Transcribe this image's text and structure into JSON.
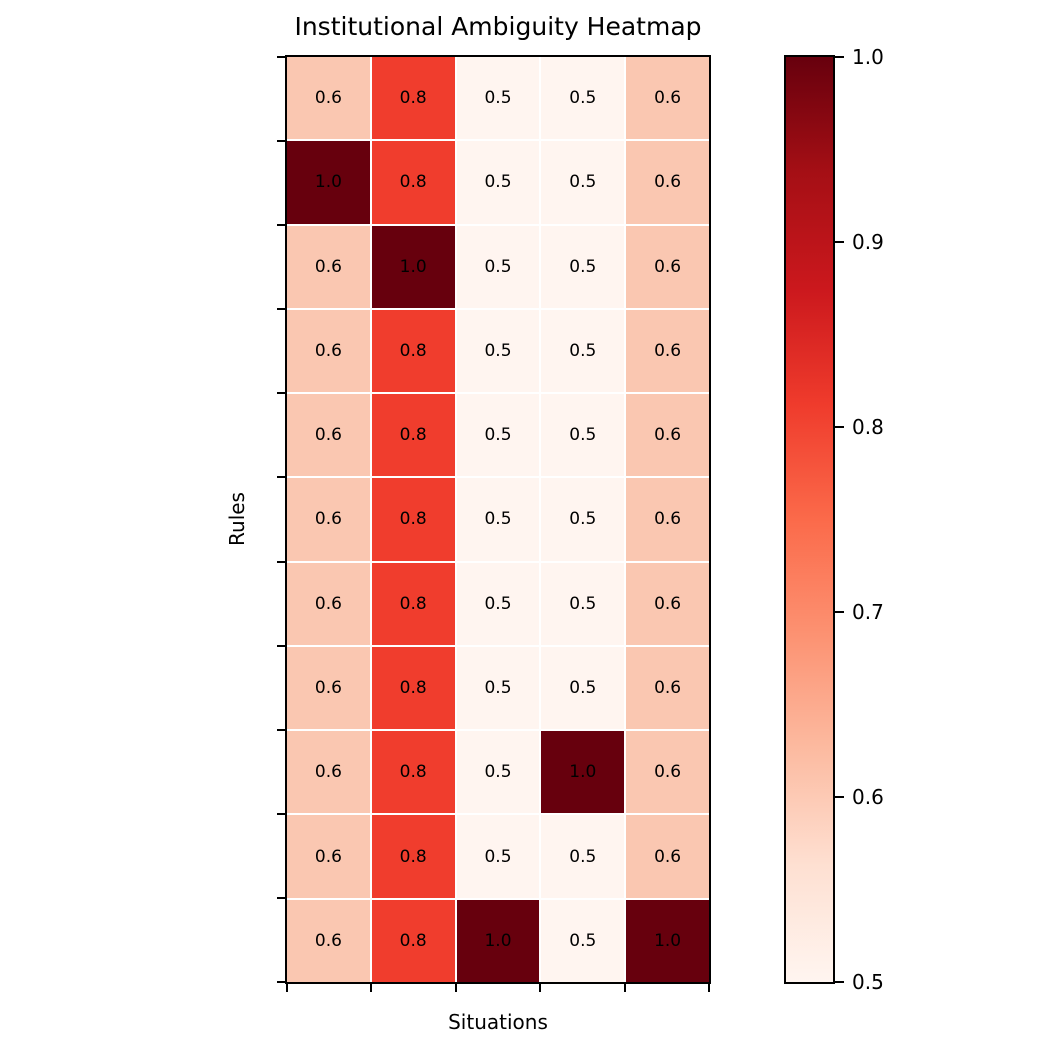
{
  "title": "Institutional Ambiguity Heatmap",
  "chart_data": {
    "type": "heatmap",
    "title": "Institutional Ambiguity Heatmap",
    "xlabel": "Situations",
    "ylabel": "Rules",
    "rows": 11,
    "cols": 5,
    "values": [
      [
        0.6,
        0.8,
        0.5,
        0.5,
        0.6
      ],
      [
        1.0,
        0.8,
        0.5,
        0.5,
        0.6
      ],
      [
        0.6,
        1.0,
        0.5,
        0.5,
        0.6
      ],
      [
        0.6,
        0.8,
        0.5,
        0.5,
        0.6
      ],
      [
        0.6,
        0.8,
        0.5,
        0.5,
        0.6
      ],
      [
        0.6,
        0.8,
        0.5,
        0.5,
        0.6
      ],
      [
        0.6,
        0.8,
        0.5,
        0.5,
        0.6
      ],
      [
        0.6,
        0.8,
        0.5,
        0.5,
        0.6
      ],
      [
        0.6,
        0.8,
        0.5,
        1.0,
        0.6
      ],
      [
        0.6,
        0.8,
        0.5,
        0.5,
        0.6
      ],
      [
        0.6,
        0.8,
        1.0,
        0.5,
        1.0
      ]
    ],
    "vmin": 0.5,
    "vmax": 1.0,
    "colormap": "Reds",
    "colorbar_tick_labels": [
      "1.0",
      "0.9",
      "0.8",
      "0.7",
      "0.6",
      "0.5"
    ],
    "x_axis_tick_labels": [],
    "y_axis_tick_labels": [],
    "annotation_color": "#000000",
    "grid_line_color": "#ffffff",
    "axis_color": "#000000",
    "value_colors": {
      "0.5": "#fff5f0",
      "0.6": "#fac7b1",
      "0.8": "#f03d2d",
      "1.0": "#67000d"
    },
    "colormap_stops": [
      "#fff5f0",
      "#fee0d2",
      "#fcbba1",
      "#fc9272",
      "#fb6a4a",
      "#ef3b2c",
      "#cb181d",
      "#a50f15",
      "#67000d"
    ]
  }
}
